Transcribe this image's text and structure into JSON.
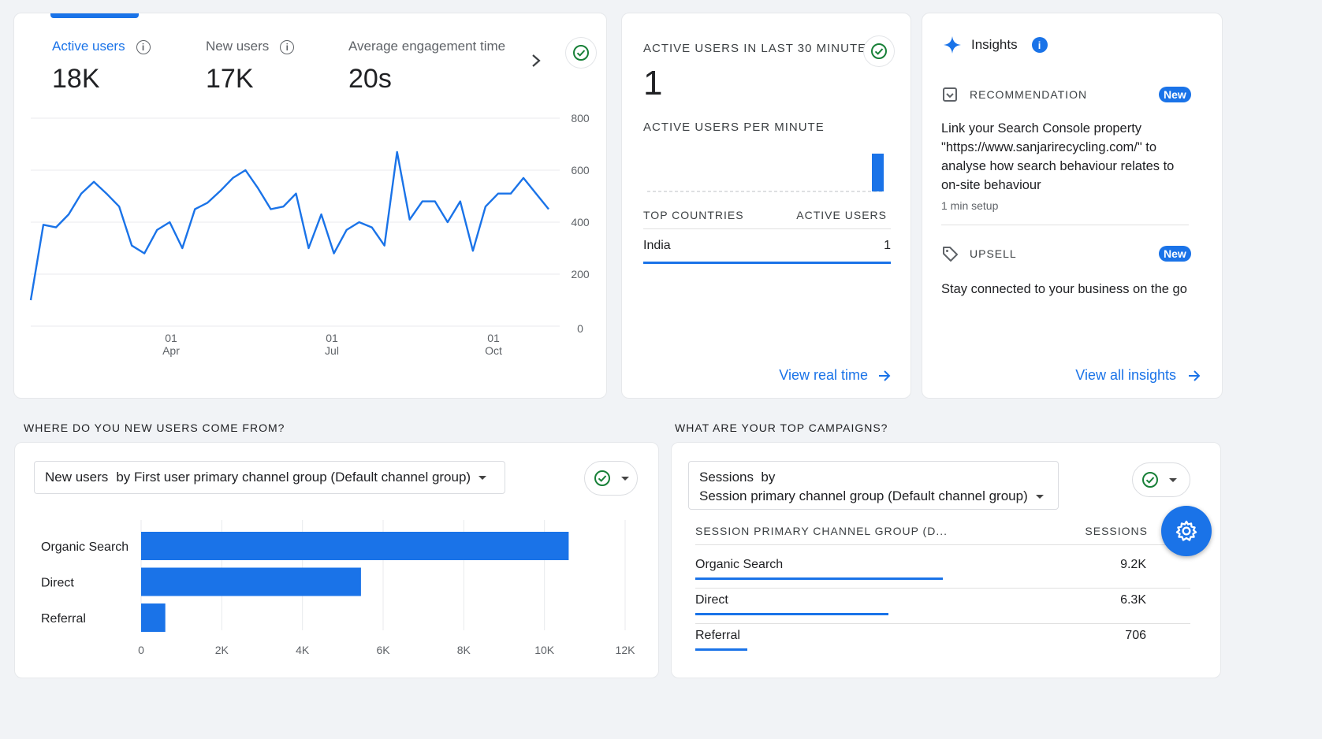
{
  "overview": {
    "metrics": [
      {
        "label": "Active users",
        "value": "18K"
      },
      {
        "label": "New users",
        "value": "17K"
      },
      {
        "label": "Average engagement time",
        "value": "20s"
      }
    ],
    "chart_data": {
      "type": "line",
      "series": [
        {
          "values": [
            100,
            390,
            380,
            430,
            510,
            555,
            510,
            460,
            310,
            280,
            370,
            400,
            300,
            450,
            475,
            520,
            570,
            600,
            530,
            450,
            460,
            510,
            300,
            430,
            280,
            370,
            400,
            380,
            310,
            670,
            410,
            480,
            480,
            400,
            480,
            290,
            460,
            510,
            510,
            570,
            510,
            450
          ]
        }
      ],
      "x_tick_labels": [
        [
          "01",
          "Apr"
        ],
        [
          "01",
          "Jul"
        ],
        [
          "01",
          "Oct"
        ]
      ],
      "y_ticks": [
        "800",
        "600",
        "400",
        "200",
        "0"
      ],
      "ylim": [
        0,
        800
      ],
      "grid": true,
      "line_color": "#1a73e8"
    }
  },
  "realtime": {
    "title": "ACTIVE USERS IN LAST 30 MINUTES",
    "value": "1",
    "per_minute_label": "ACTIVE USERS PER MINUTE",
    "per_minute_chart": {
      "type": "bar",
      "values": [
        0,
        0,
        0,
        0,
        0,
        0,
        0,
        0,
        0,
        0,
        0,
        0,
        0,
        0,
        0,
        0,
        0,
        0,
        0,
        0,
        0,
        0,
        0,
        0,
        0,
        0,
        0,
        0,
        1,
        0
      ]
    },
    "countries_header": "TOP COUNTRIES",
    "users_header": "ACTIVE USERS",
    "rows": [
      {
        "country": "India",
        "users": "1"
      }
    ],
    "link": "View real time"
  },
  "insights": {
    "title": "Insights",
    "items": [
      {
        "kind": "RECOMMENDATION",
        "badge": "New",
        "text": "Link your Search Console property \"https://www.sanjarirecycling.com/\" to analyse how search behaviour relates to on-site behaviour",
        "meta": "1 min setup"
      },
      {
        "kind": "UPSELL",
        "badge": "New",
        "text": "Stay connected to your business on the go"
      }
    ],
    "link": "View all insights"
  },
  "acquisition": {
    "section_title": "WHERE DO YOU NEW USERS COME FROM?",
    "selector_metric": "New users",
    "selector_dimension": "by First user primary channel group (Default channel group)",
    "chart_data": {
      "type": "bar",
      "orientation": "horizontal",
      "categories": [
        "Organic Search",
        "Direct",
        "Referral"
      ],
      "values": [
        10600,
        5450,
        600
      ],
      "x_ticks": [
        "0",
        "2K",
        "4K",
        "6K",
        "8K",
        "10K",
        "12K"
      ],
      "xlim": [
        0,
        12000
      ],
      "color": "#1a73e8"
    }
  },
  "campaigns": {
    "section_title": "WHAT ARE YOUR TOP CAMPAIGNS?",
    "selector_line1": "Sessions  by",
    "selector_line2": "Session primary channel group (Default channel group)",
    "col_dimension": "SESSION PRIMARY CHANNEL GROUP (D...",
    "col_metric": "SESSIONS",
    "rows": [
      {
        "label": "Organic Search",
        "value": "9.2K",
        "share": 0.5
      },
      {
        "label": "Direct",
        "value": "6.3K",
        "share": 0.39
      },
      {
        "label": "Referral",
        "value": "706",
        "share": 0.105
      }
    ]
  }
}
